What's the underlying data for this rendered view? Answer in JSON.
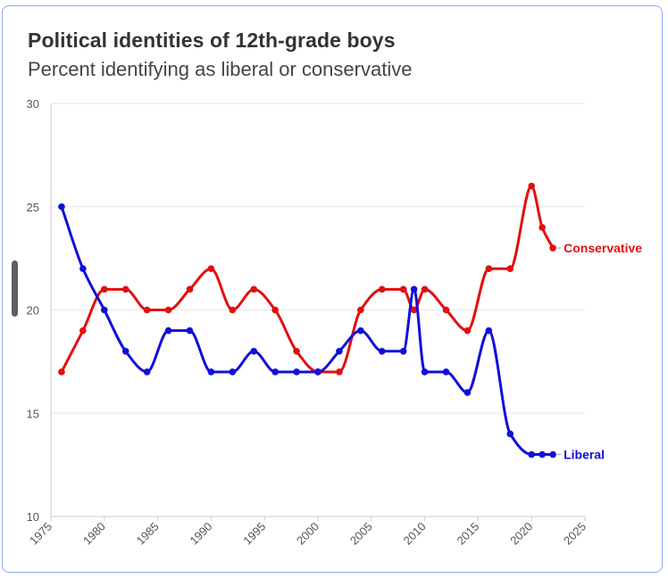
{
  "chart_data": {
    "type": "line",
    "title": "Political identities of 12th-grade boys",
    "subtitle": "Percent identifying as liberal or conservative",
    "xlabel": "",
    "ylabel": "",
    "xlim": [
      1975,
      2025
    ],
    "ylim": [
      10,
      30
    ],
    "x_ticks": [
      1975,
      1980,
      1985,
      1990,
      1995,
      2000,
      2005,
      2010,
      2015,
      2020,
      2025
    ],
    "y_ticks": [
      10,
      15,
      20,
      25,
      30
    ],
    "grid": true,
    "legend": "inline labels at line ends",
    "series": [
      {
        "name": "Conservative",
        "color": "#e30f0f",
        "points": [
          [
            1976,
            17
          ],
          [
            1978,
            19
          ],
          [
            1980,
            21
          ],
          [
            1982,
            21
          ],
          [
            1984,
            20
          ],
          [
            1986,
            20
          ],
          [
            1988,
            21
          ],
          [
            1990,
            22
          ],
          [
            1992,
            20
          ],
          [
            1994,
            21
          ],
          [
            1996,
            20
          ],
          [
            1998,
            18
          ],
          [
            2000,
            17
          ],
          [
            2002,
            17
          ],
          [
            2004,
            20
          ],
          [
            2006,
            21
          ],
          [
            2008,
            21
          ],
          [
            2009,
            20
          ],
          [
            2010,
            21
          ],
          [
            2012,
            20
          ],
          [
            2014,
            19
          ],
          [
            2016,
            22
          ],
          [
            2018,
            22
          ],
          [
            2020,
            26
          ],
          [
            2021,
            24
          ],
          [
            2022,
            23
          ]
        ]
      },
      {
        "name": "Liberal",
        "color": "#1010d8",
        "points": [
          [
            1976,
            25
          ],
          [
            1978,
            22
          ],
          [
            1980,
            20
          ],
          [
            1982,
            18
          ],
          [
            1984,
            17
          ],
          [
            1986,
            19
          ],
          [
            1988,
            19
          ],
          [
            1990,
            17
          ],
          [
            1992,
            17
          ],
          [
            1994,
            18
          ],
          [
            1996,
            17
          ],
          [
            1998,
            17
          ],
          [
            2000,
            17
          ],
          [
            2002,
            18
          ],
          [
            2004,
            19
          ],
          [
            2006,
            18
          ],
          [
            2008,
            18
          ],
          [
            2009,
            21
          ],
          [
            2010,
            17
          ],
          [
            2012,
            17
          ],
          [
            2014,
            16
          ],
          [
            2016,
            19
          ],
          [
            2018,
            14
          ],
          [
            2020,
            13
          ],
          [
            2021,
            13
          ],
          [
            2022,
            13
          ]
        ]
      }
    ]
  },
  "colors": {
    "card_border": "#8ea6ff",
    "grid": "#e6e6e6",
    "axis": "#cccccc"
  },
  "icons": {
    "scroll_handle": "scrollbar-handle"
  }
}
